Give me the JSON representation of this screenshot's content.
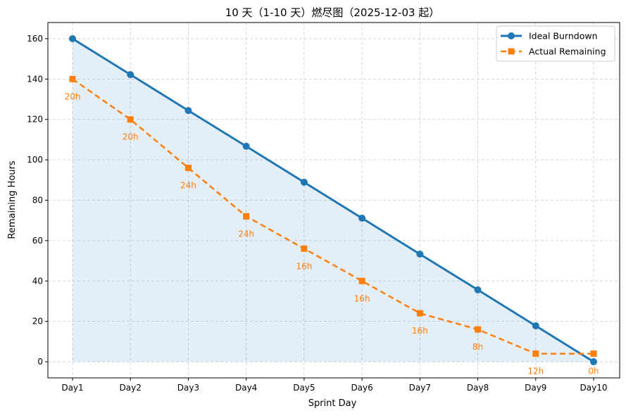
{
  "chart_data": {
    "type": "line",
    "title": "10 天（1-10 天）燃尽图（2025-12-03 起）",
    "xlabel": "Sprint Day",
    "ylabel": "Remaining Hours",
    "categories": [
      "Day1",
      "Day2",
      "Day3",
      "Day4",
      "Day5",
      "Day6",
      "Day7",
      "Day8",
      "Day9",
      "Day10"
    ],
    "ylim": [
      -8,
      168
    ],
    "yticks": [
      0,
      20,
      40,
      60,
      80,
      100,
      120,
      140,
      160
    ],
    "grid": true,
    "legend": "top-right",
    "series": [
      {
        "name": "Ideal Burndown",
        "color": "#1f77b4",
        "marker": "circle",
        "style": "solid",
        "fill_to_zero": true,
        "values": [
          160,
          142.2,
          124.4,
          106.7,
          88.9,
          71.1,
          53.3,
          35.6,
          17.8,
          0
        ]
      },
      {
        "name": "Actual Remaining",
        "color": "#ff7f0e",
        "marker": "square",
        "style": "dashed",
        "values": [
          140,
          120,
          96,
          72,
          56,
          40,
          24,
          16,
          4,
          4
        ],
        "labels": [
          "20h",
          "20h",
          "24h",
          "24h",
          "16h",
          "16h",
          "16h",
          "8h",
          "12h",
          "0h"
        ]
      }
    ]
  }
}
